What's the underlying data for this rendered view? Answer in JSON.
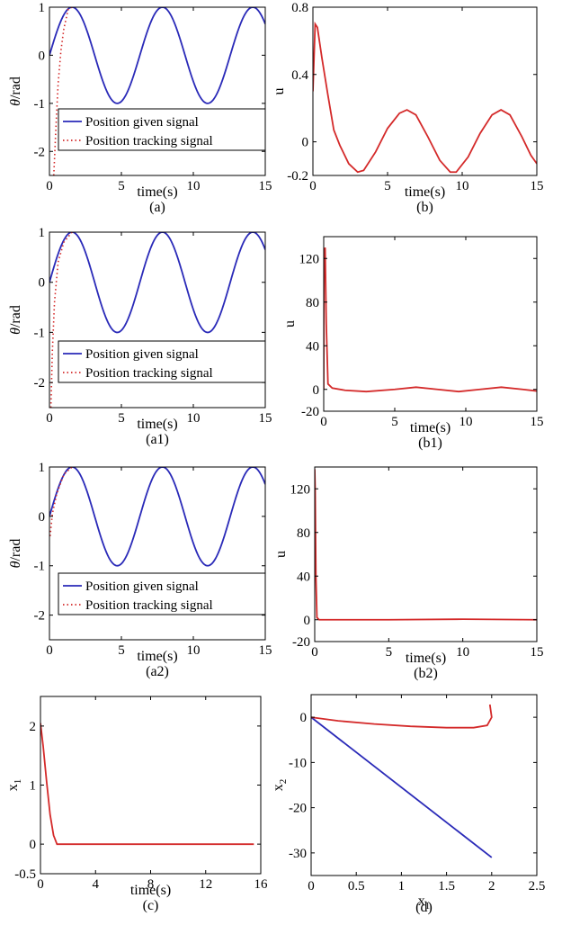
{
  "figure": {
    "colors": {
      "blue": "#2a2ab8",
      "red": "#d42a2a",
      "axis": "#000000"
    }
  },
  "chart_data": [
    {
      "id": "a",
      "caption": "(a)",
      "type": "line",
      "xlabel": "time(s)",
      "ylabel": "θ/rad",
      "xlim": [
        0,
        15
      ],
      "ylim": [
        -2.5,
        1
      ],
      "xticks": [
        "0",
        "5",
        "10",
        "15"
      ],
      "xtick_values": [
        0,
        5,
        10,
        15
      ],
      "yticks": [
        "1",
        "0",
        "-1",
        "-2"
      ],
      "ytick_values": [
        1,
        0,
        -1,
        -2
      ],
      "legend": {
        "position": "lower-left",
        "entries": [
          "Position given signal",
          "Position tracking signal"
        ]
      },
      "series": [
        {
          "name": "Position given signal",
          "style": "solid",
          "color": "#2a2ab8",
          "function": "sin(t)",
          "x_range": [
            0,
            15
          ]
        },
        {
          "name": "Position tracking signal",
          "style": "dotted",
          "color": "#d42a2a",
          "points": [
            [
              0.3,
              -2.5
            ],
            [
              0.45,
              -1.5
            ],
            [
              0.6,
              -0.6
            ],
            [
              0.8,
              0.1
            ],
            [
              1.0,
              0.55
            ],
            [
              1.3,
              0.95
            ],
            [
              1.57,
              1.0
            ]
          ]
        }
      ]
    },
    {
      "id": "b",
      "caption": "(b)",
      "type": "line",
      "xlabel": "time(s)",
      "ylabel": "u",
      "xlim": [
        0,
        15
      ],
      "ylim": [
        -0.2,
        0.8
      ],
      "xticks": [
        "0",
        "5",
        "10",
        "15"
      ],
      "xtick_values": [
        0,
        5,
        10,
        15
      ],
      "yticks": [
        "0.8",
        "0.4",
        "0",
        "-0.2"
      ],
      "ytick_values": [
        0.8,
        0.4,
        0,
        -0.2
      ],
      "series": [
        {
          "color": "#d42a2a",
          "style": "solid",
          "points": [
            [
              0,
              0.3
            ],
            [
              0.15,
              0.7
            ],
            [
              0.3,
              0.68
            ],
            [
              0.6,
              0.5
            ],
            [
              1.0,
              0.28
            ],
            [
              1.4,
              0.07
            ],
            [
              1.8,
              -0.02
            ],
            [
              2.4,
              -0.13
            ],
            [
              3.0,
              -0.18
            ],
            [
              3.4,
              -0.17
            ],
            [
              4.2,
              -0.06
            ],
            [
              5.0,
              0.08
            ],
            [
              5.8,
              0.17
            ],
            [
              6.3,
              0.19
            ],
            [
              6.9,
              0.16
            ],
            [
              7.7,
              0.03
            ],
            [
              8.5,
              -0.11
            ],
            [
              9.2,
              -0.18
            ],
            [
              9.6,
              -0.18
            ],
            [
              10.4,
              -0.09
            ],
            [
              11.2,
              0.05
            ],
            [
              12.0,
              0.16
            ],
            [
              12.6,
              0.19
            ],
            [
              13.2,
              0.16
            ],
            [
              14.0,
              0.03
            ],
            [
              14.6,
              -0.08
            ],
            [
              15.0,
              -0.13
            ]
          ]
        }
      ]
    },
    {
      "id": "a1",
      "caption": "(a1)",
      "type": "line",
      "xlabel": "time(s)",
      "ylabel": "θ/rad",
      "xlim": [
        0,
        15
      ],
      "ylim": [
        -2.5,
        1
      ],
      "xticks": [
        "0",
        "5",
        "10",
        "15"
      ],
      "xtick_values": [
        0,
        5,
        10,
        15
      ],
      "yticks": [
        "1",
        "0",
        "-1",
        "-2"
      ],
      "ytick_values": [
        1,
        0,
        -1,
        -2
      ],
      "legend": {
        "position": "lower-left",
        "entries": [
          "Position given signal",
          "Position tracking signal"
        ]
      },
      "series": [
        {
          "name": "Position given signal",
          "style": "solid",
          "color": "#2a2ab8",
          "function": "sin(t)",
          "x_range": [
            0,
            15
          ]
        },
        {
          "name": "Position tracking signal",
          "style": "dotted",
          "color": "#d42a2a",
          "points": [
            [
              0.1,
              -2.5
            ],
            [
              0.2,
              -1.4
            ],
            [
              0.35,
              -0.4
            ],
            [
              0.6,
              0.4
            ],
            [
              1.0,
              0.8
            ],
            [
              1.57,
              1.0
            ]
          ]
        }
      ]
    },
    {
      "id": "b1",
      "caption": "(b1)",
      "type": "line",
      "xlabel": "time(s)",
      "ylabel": "u",
      "xlim": [
        0,
        15
      ],
      "ylim": [
        -20,
        140
      ],
      "xticks": [
        "0",
        "5",
        "10",
        "15"
      ],
      "xtick_values": [
        0,
        5,
        10,
        15
      ],
      "yticks": [
        "120",
        "80",
        "40",
        "0",
        "-20"
      ],
      "ytick_values": [
        120,
        80,
        40,
        0,
        -20
      ],
      "series": [
        {
          "color": "#d42a2a",
          "style": "solid",
          "points": [
            [
              0,
              0
            ],
            [
              0.02,
              125
            ],
            [
              0.1,
              130
            ],
            [
              0.18,
              60
            ],
            [
              0.3,
              5
            ],
            [
              0.6,
              1.2
            ],
            [
              1.5,
              -0.8
            ],
            [
              3.0,
              -2
            ],
            [
              5.0,
              0
            ],
            [
              6.5,
              2
            ],
            [
              8.0,
              0
            ],
            [
              9.5,
              -2
            ],
            [
              11.0,
              0
            ],
            [
              12.5,
              2
            ],
            [
              14.0,
              0
            ],
            [
              15.0,
              -1.5
            ]
          ]
        }
      ]
    },
    {
      "id": "a2",
      "caption": "(a2)",
      "type": "line",
      "xlabel": "time(s)",
      "ylabel": "θ/rad",
      "xlim": [
        0,
        15
      ],
      "ylim": [
        -2.5,
        1
      ],
      "xticks": [
        "0",
        "5",
        "10",
        "15"
      ],
      "xtick_values": [
        0,
        5,
        10,
        15
      ],
      "yticks": [
        "1",
        "0",
        "-1",
        "-2"
      ],
      "ytick_values": [
        1,
        0,
        -1,
        -2
      ],
      "legend": {
        "position": "lower-left",
        "entries": [
          "Position given signal",
          "Position tracking signal"
        ]
      },
      "series": [
        {
          "name": "Position given signal",
          "style": "solid",
          "color": "#2a2ab8",
          "function": "sin(t)",
          "x_range": [
            0,
            15
          ]
        },
        {
          "name": "Position tracking signal",
          "style": "dotted",
          "color": "#d42a2a",
          "points": [
            [
              0.05,
              -0.4
            ],
            [
              0.2,
              0.05
            ],
            [
              0.5,
              0.45
            ],
            [
              1.0,
              0.85
            ],
            [
              1.57,
              1.0
            ]
          ]
        }
      ]
    },
    {
      "id": "b2",
      "caption": "(b2)",
      "type": "line",
      "xlabel": "time(s)",
      "ylabel": "u",
      "xlim": [
        0,
        15
      ],
      "ylim": [
        -20,
        140
      ],
      "xticks": [
        "0",
        "5",
        "10",
        "15"
      ],
      "xtick_values": [
        0,
        5,
        10,
        15
      ],
      "yticks": [
        "120",
        "80",
        "40",
        "0",
        "-20"
      ],
      "ytick_values": [
        120,
        80,
        40,
        0,
        -20
      ],
      "series": [
        {
          "color": "#d42a2a",
          "style": "solid",
          "points": [
            [
              0,
              138
            ],
            [
              0.03,
              120
            ],
            [
              0.08,
              40
            ],
            [
              0.15,
              2
            ],
            [
              0.3,
              0
            ],
            [
              5,
              0
            ],
            [
              10,
              0.5
            ],
            [
              15,
              0
            ]
          ]
        }
      ]
    },
    {
      "id": "c",
      "caption": "(c)",
      "type": "line",
      "xlabel": "time(s)",
      "ylabel": "x1",
      "xlim": [
        0,
        16
      ],
      "ylim": [
        -0.5,
        2.5
      ],
      "xticks": [
        "0",
        "4",
        "8",
        "12",
        "16"
      ],
      "xtick_values": [
        0,
        4,
        8,
        12,
        16
      ],
      "yticks": [
        "2",
        "1",
        "0",
        "-0.5"
      ],
      "ytick_values": [
        2,
        1,
        0,
        -0.5
      ],
      "series": [
        {
          "color": "#d42a2a",
          "style": "solid",
          "points": [
            [
              0,
              2.05
            ],
            [
              0.2,
              1.65
            ],
            [
              0.45,
              1.05
            ],
            [
              0.7,
              0.5
            ],
            [
              0.95,
              0.15
            ],
            [
              1.2,
              0.0
            ],
            [
              15.5,
              0.0
            ]
          ]
        }
      ]
    },
    {
      "id": "d",
      "caption": "(d)",
      "type": "line",
      "xlabel": "x1",
      "ylabel": "x2",
      "xlim": [
        0,
        2.5
      ],
      "ylim": [
        -35,
        5
      ],
      "xticks": [
        "0",
        "0.5",
        "1",
        "1.5",
        "2",
        "2.5"
      ],
      "xtick_values": [
        0,
        0.5,
        1,
        1.5,
        2,
        2.5
      ],
      "yticks": [
        "0",
        "-10",
        "-20",
        "-30"
      ],
      "ytick_values": [
        0,
        -10,
        -20,
        -30
      ],
      "series": [
        {
          "color": "#2a2ab8",
          "style": "solid",
          "points": [
            [
              0,
              0
            ],
            [
              2,
              -31
            ]
          ]
        },
        {
          "color": "#d42a2a",
          "style": "solid",
          "points": [
            [
              0,
              0
            ],
            [
              0.3,
              -0.8
            ],
            [
              0.7,
              -1.5
            ],
            [
              1.1,
              -2.0
            ],
            [
              1.5,
              -2.3
            ],
            [
              1.8,
              -2.3
            ],
            [
              1.95,
              -1.8
            ],
            [
              2.0,
              0
            ],
            [
              1.98,
              2.8
            ]
          ]
        }
      ]
    }
  ]
}
